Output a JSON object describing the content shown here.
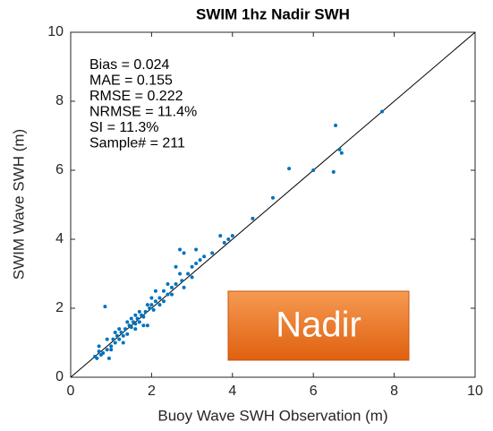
{
  "chart_data": {
    "type": "scatter",
    "title": "SWIM 1hz Nadir SWH",
    "xlabel": "Buoy Wave SWH Observation (m)",
    "ylabel": "SWIM Wave SWH (m)",
    "annotations": [
      "Bias = 0.024",
      "MAE = 0.155",
      "RMSE = 0.222",
      "NRMSE = 11.4%",
      "SI = 11.3%",
      "Sample# = 211"
    ],
    "color": "#0072bd",
    "xlim": [
      0,
      10
    ],
    "ylim": [
      0,
      10
    ],
    "xticks": [
      0,
      2,
      4,
      6,
      8,
      10
    ],
    "yticks": [
      0,
      2,
      4,
      6,
      8,
      10
    ],
    "x": [
      0.6,
      0.65,
      0.7,
      0.75,
      0.8,
      0.85,
      0.9,
      0.95,
      1.0,
      1.05,
      1.1,
      1.15,
      1.2,
      1.25,
      1.3,
      1.35,
      1.4,
      1.45,
      1.5,
      1.55,
      1.6,
      1.65,
      1.7,
      1.75,
      1.8,
      1.85,
      1.9,
      1.95,
      2.0,
      2.05,
      2.1,
      2.2,
      2.3,
      2.4,
      2.5,
      2.6,
      2.7,
      2.75,
      2.8,
      2.9,
      3.0,
      3.1,
      3.2,
      3.3,
      3.5,
      3.7,
      3.8,
      3.9,
      4.0,
      4.5,
      5.0,
      5.4,
      6.0,
      6.5,
      6.55,
      6.65,
      6.7,
      7.7,
      1.1,
      1.3,
      1.5,
      1.6,
      1.7,
      1.9,
      2.2,
      2.4,
      2.6,
      2.8,
      3.0,
      0.9,
      1.0,
      1.2,
      1.4,
      2.1,
      2.3,
      2.5,
      2.7,
      3.1,
      1.8,
      1.6,
      2.0,
      0.7
    ],
    "values": [
      0.6,
      0.55,
      0.75,
      0.65,
      0.7,
      2.05,
      0.8,
      0.55,
      0.9,
      1.1,
      1.0,
      1.2,
      1.1,
      1.3,
      1.2,
      1.4,
      1.25,
      1.5,
      1.45,
      1.6,
      1.55,
      1.7,
      1.6,
      1.8,
      1.75,
      1.9,
      1.5,
      2.0,
      2.1,
      1.95,
      2.2,
      2.3,
      2.5,
      2.4,
      2.6,
      2.7,
      3.7,
      2.8,
      3.6,
      3.0,
      3.2,
      3.3,
      3.4,
      3.5,
      3.6,
      4.1,
      3.9,
      4.0,
      4.1,
      4.6,
      5.2,
      6.05,
      6.0,
      5.95,
      7.3,
      6.6,
      6.5,
      7.7,
      1.3,
      1.0,
      1.7,
      1.4,
      1.9,
      2.1,
      2.1,
      2.7,
      3.2,
      2.6,
      2.9,
      1.1,
      0.8,
      1.4,
      1.6,
      2.5,
      2.2,
      2.4,
      3.0,
      3.7,
      1.5,
      1.8,
      2.3,
      0.9
    ]
  },
  "badge_label": "Nadir"
}
